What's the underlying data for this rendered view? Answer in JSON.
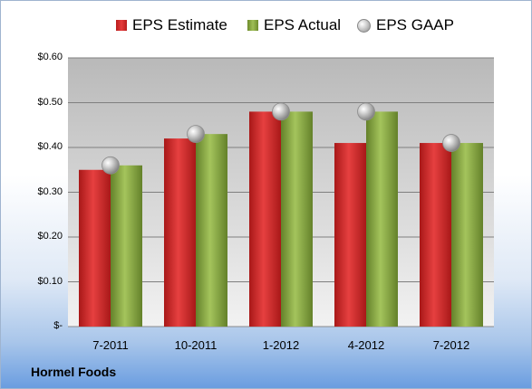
{
  "footer": {
    "company": "Hormel Foods"
  },
  "legend": [
    {
      "label": "EPS Estimate",
      "marker": "red-bar"
    },
    {
      "label": "EPS Actual",
      "marker": "green-bar"
    },
    {
      "label": "EPS GAAP",
      "marker": "grey-ball"
    }
  ],
  "chart_data": {
    "type": "bar",
    "categories": [
      "7-2011",
      "10-2011",
      "1-2012",
      "4-2012",
      "7-2012"
    ],
    "series": [
      {
        "name": "EPS Estimate",
        "type": "bar",
        "color": "#d42a2a",
        "values": [
          0.35,
          0.42,
          0.48,
          0.41,
          0.41
        ]
      },
      {
        "name": "EPS Actual",
        "type": "bar",
        "color": "#8db047",
        "values": [
          0.36,
          0.43,
          0.48,
          0.48,
          0.41
        ]
      },
      {
        "name": "EPS GAAP",
        "type": "marker",
        "color": "#b0b0b0",
        "values": [
          0.36,
          0.43,
          0.48,
          0.48,
          0.41
        ]
      }
    ],
    "ylim": [
      0,
      0.6
    ],
    "yticks": [
      0,
      0.1,
      0.2,
      0.3,
      0.4,
      0.5,
      0.6
    ],
    "ytick_labels": [
      "$-",
      "$0.10",
      "$0.20",
      "$0.30",
      "$0.40",
      "$0.50",
      "$0.60"
    ],
    "grid": true,
    "legend_position": "top"
  }
}
